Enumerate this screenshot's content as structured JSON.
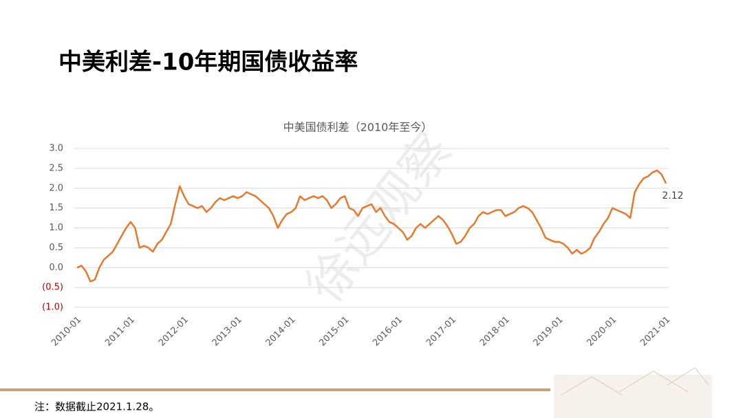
{
  "header": {
    "title": "中美利差-10年期国债收益率"
  },
  "watermark": "徐远观察",
  "footnote": "注：数据截止2021.1.28。",
  "chart_data": {
    "type": "line",
    "title": "中美国债利差（2010年至今）",
    "x": [
      "2010-01",
      "2010-02",
      "2010-03",
      "2010-04",
      "2010-05",
      "2010-06",
      "2010-07",
      "2010-08",
      "2010-09",
      "2010-10",
      "2010-11",
      "2010-12",
      "2011-01",
      "2011-02",
      "2011-03",
      "2011-04",
      "2011-05",
      "2011-06",
      "2011-07",
      "2011-08",
      "2011-09",
      "2011-10",
      "2011-11",
      "2011-12",
      "2012-01",
      "2012-02",
      "2012-03",
      "2012-04",
      "2012-05",
      "2012-06",
      "2012-07",
      "2012-08",
      "2012-09",
      "2012-10",
      "2012-11",
      "2012-12",
      "2013-01",
      "2013-02",
      "2013-03",
      "2013-04",
      "2013-05",
      "2013-06",
      "2013-07",
      "2013-08",
      "2013-09",
      "2013-10",
      "2013-11",
      "2013-12",
      "2014-01",
      "2014-02",
      "2014-03",
      "2014-04",
      "2014-05",
      "2014-06",
      "2014-07",
      "2014-08",
      "2014-09",
      "2014-10",
      "2014-11",
      "2014-12",
      "2015-01",
      "2015-02",
      "2015-03",
      "2015-04",
      "2015-05",
      "2015-06",
      "2015-07",
      "2015-08",
      "2015-09",
      "2015-10",
      "2015-11",
      "2015-12",
      "2016-01",
      "2016-02",
      "2016-03",
      "2016-04",
      "2016-05",
      "2016-06",
      "2016-07",
      "2016-08",
      "2016-09",
      "2016-10",
      "2016-11",
      "2016-12",
      "2017-01",
      "2017-02",
      "2017-03",
      "2017-04",
      "2017-05",
      "2017-06",
      "2017-07",
      "2017-08",
      "2017-09",
      "2017-10",
      "2017-11",
      "2017-12",
      "2018-01",
      "2018-02",
      "2018-03",
      "2018-04",
      "2018-05",
      "2018-06",
      "2018-07",
      "2018-08",
      "2018-09",
      "2018-10",
      "2018-11",
      "2018-12",
      "2019-01",
      "2019-02",
      "2019-03",
      "2019-04",
      "2019-05",
      "2019-06",
      "2019-07",
      "2019-08",
      "2019-09",
      "2019-10",
      "2019-11",
      "2019-12",
      "2020-01",
      "2020-02",
      "2020-03",
      "2020-04",
      "2020-05",
      "2020-06",
      "2020-07",
      "2020-08",
      "2020-09",
      "2020-10",
      "2020-11",
      "2020-12",
      "2021-01"
    ],
    "series": [
      {
        "color": "#e8782c",
        "values": [
          0.0,
          0.05,
          -0.1,
          -0.35,
          -0.3,
          0.0,
          0.2,
          0.3,
          0.4,
          0.6,
          0.8,
          1.0,
          1.15,
          1.0,
          0.5,
          0.55,
          0.5,
          0.4,
          0.6,
          0.7,
          0.9,
          1.1,
          1.6,
          2.05,
          1.8,
          1.6,
          1.55,
          1.5,
          1.55,
          1.4,
          1.5,
          1.65,
          1.75,
          1.7,
          1.75,
          1.8,
          1.75,
          1.8,
          1.9,
          1.85,
          1.8,
          1.7,
          1.6,
          1.5,
          1.3,
          1.0,
          1.2,
          1.35,
          1.4,
          1.5,
          1.8,
          1.7,
          1.75,
          1.8,
          1.75,
          1.8,
          1.7,
          1.5,
          1.6,
          1.75,
          1.8,
          1.5,
          1.45,
          1.3,
          1.5,
          1.55,
          1.6,
          1.4,
          1.5,
          1.3,
          1.15,
          1.1,
          1.0,
          0.9,
          0.7,
          0.8,
          1.0,
          1.1,
          1.0,
          1.1,
          1.2,
          1.3,
          1.2,
          1.05,
          0.85,
          0.6,
          0.65,
          0.8,
          1.0,
          1.1,
          1.3,
          1.4,
          1.35,
          1.4,
          1.45,
          1.45,
          1.3,
          1.35,
          1.4,
          1.5,
          1.55,
          1.5,
          1.4,
          1.2,
          1.0,
          0.75,
          0.7,
          0.65,
          0.65,
          0.6,
          0.5,
          0.35,
          0.45,
          0.35,
          0.4,
          0.5,
          0.75,
          0.9,
          1.1,
          1.25,
          1.5,
          1.45,
          1.4,
          1.35,
          1.25,
          1.9,
          2.1,
          2.25,
          2.3,
          2.4,
          2.45,
          2.35,
          2.12
        ]
      }
    ],
    "ylim": [
      -1.0,
      3.0
    ],
    "yticks": [
      {
        "value": 3,
        "label": "3.0"
      },
      {
        "value": 2.5,
        "label": "2.5"
      },
      {
        "value": 2,
        "label": "2.0"
      },
      {
        "value": 1.5,
        "label": "1.5"
      },
      {
        "value": 1,
        "label": "1.0"
      },
      {
        "value": 0.5,
        "label": "0.5"
      },
      {
        "value": 0,
        "label": "0.0"
      },
      {
        "value": -0.5,
        "label": "(0.5)"
      },
      {
        "value": -1,
        "label": "(1.0)"
      }
    ],
    "xtick_every": 12,
    "grid": true,
    "negative_tick_color": "#c00000"
  }
}
